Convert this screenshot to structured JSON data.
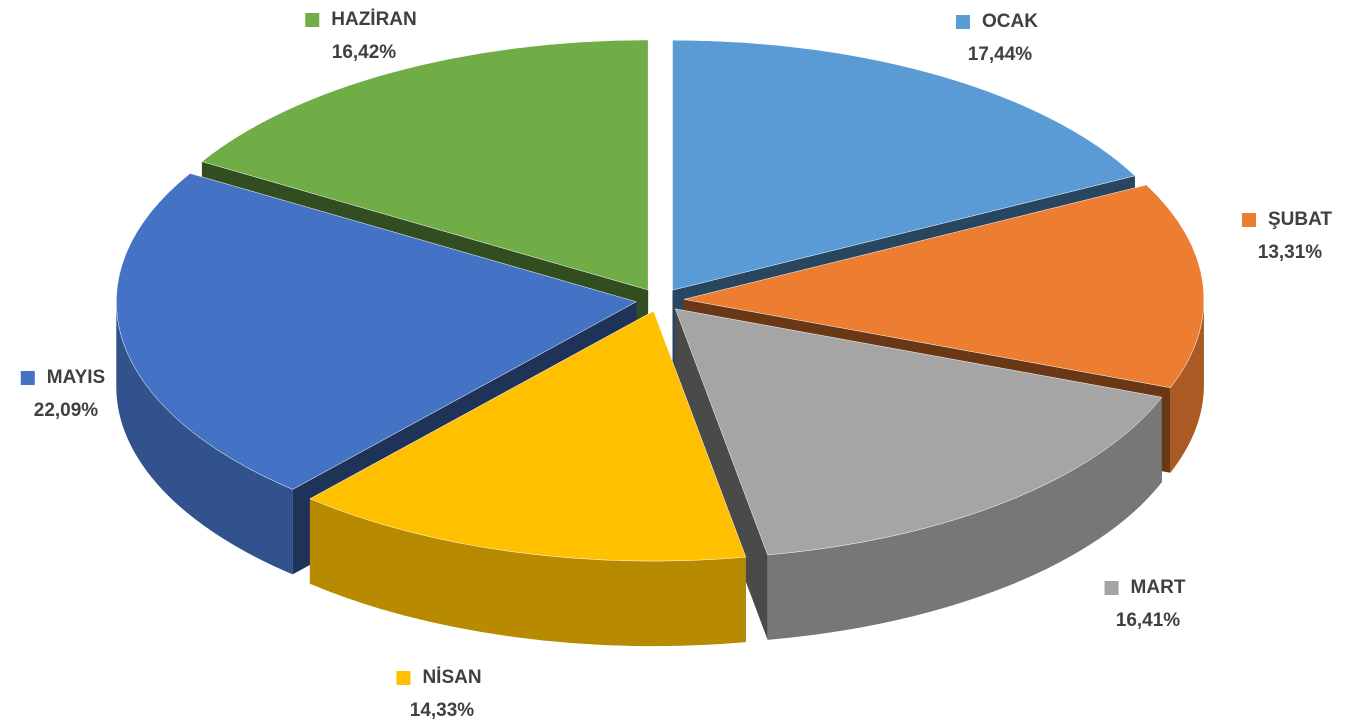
{
  "chart_data": {
    "type": "pie",
    "categories": [
      "OCAK",
      "ŞUBAT",
      "MART",
      "NİSAN",
      "MAYIS",
      "HAZİRAN"
    ],
    "values": [
      17.44,
      13.31,
      16.41,
      14.33,
      22.09,
      16.42
    ],
    "value_labels": [
      "17,44%",
      "13,31%",
      "16,41%",
      "14,33%",
      "22,09%",
      "16,42%"
    ],
    "colors": [
      "#5b9bd5",
      "#ed7d31",
      "#a5a5a5",
      "#ffc000",
      "#4472c4",
      "#70ad47"
    ]
  }
}
